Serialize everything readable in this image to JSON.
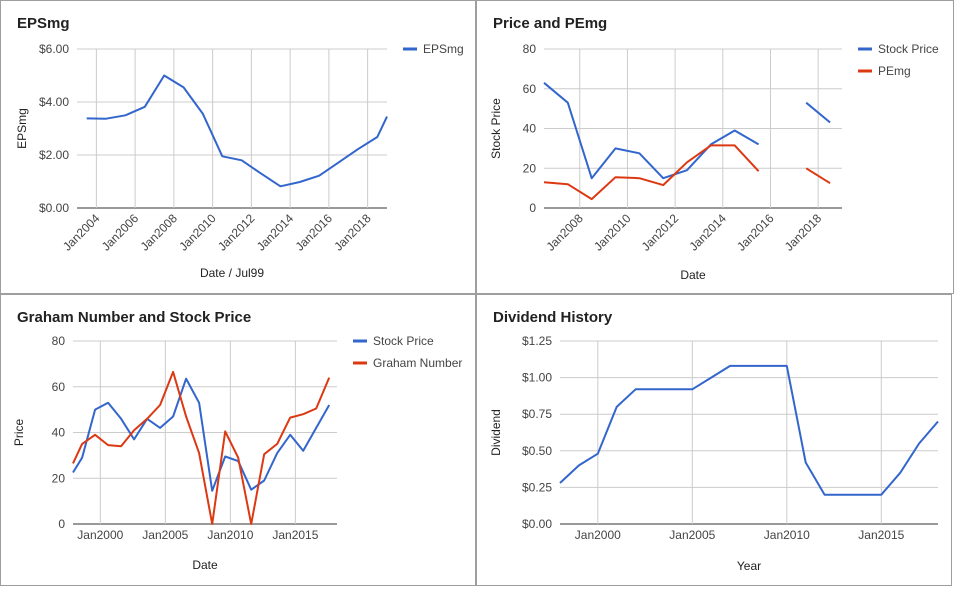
{
  "chart_data": [
    {
      "id": "eps",
      "type": "line",
      "title": "EPSmg",
      "xlabel": "Date / Jul99",
      "ylabel": "EPSmg",
      "ylim": [
        0,
        6
      ],
      "xlim": [
        2003.0,
        2019.0
      ],
      "yticks": [
        0,
        2,
        4,
        6
      ],
      "ytick_labels": [
        "$0.00",
        "$2.00",
        "$4.00",
        "$6.00"
      ],
      "xticks": [
        2004,
        2006,
        2008,
        2010,
        2012,
        2014,
        2016,
        2018
      ],
      "xtick_labels": [
        "Jan2004",
        "Jan2006",
        "Jan2008",
        "Jan2010",
        "Jan2012",
        "Jan2014",
        "Jan2016",
        "Jan2018"
      ],
      "legend": "right",
      "x": [
        2003.5,
        2004.5,
        2005.5,
        2006.5,
        2007.5,
        2008.5,
        2009.5,
        2010.5,
        2011.5,
        2012.5,
        2013.5,
        2014.5,
        2015.5,
        2016.5,
        2017.5,
        2018.5,
        2019.0
      ],
      "series": [
        {
          "name": "EPSmg",
          "color": "#3366cc",
          "values": [
            3.38,
            3.37,
            3.5,
            3.82,
            5.0,
            4.55,
            3.55,
            1.95,
            1.8,
            1.3,
            0.82,
            0.98,
            1.22,
            1.72,
            2.22,
            2.68,
            3.45
          ]
        }
      ]
    },
    {
      "id": "price",
      "type": "line",
      "title": "Price and PEmg",
      "xlabel": "Date",
      "ylabel": "Stock Price",
      "ylim": [
        0,
        80
      ],
      "xlim": [
        2006.5,
        2019.0
      ],
      "yticks": [
        0,
        20,
        40,
        60,
        80
      ],
      "ytick_labels": [
        "0",
        "20",
        "40",
        "60",
        "80"
      ],
      "xticks": [
        2008,
        2010,
        2012,
        2014,
        2016,
        2018
      ],
      "xtick_labels": [
        "Jan2008",
        "Jan2010",
        "Jan2012",
        "Jan2014",
        "Jan2016",
        "Jan2018"
      ],
      "legend": "right",
      "x": [
        2006.5,
        2007.5,
        2008.5,
        2009.5,
        2010.5,
        2011.5,
        2012.5,
        2013.5,
        2014.5,
        2015.5,
        2016.5,
        2017.5,
        2018.5,
        2019.0
      ],
      "series": [
        {
          "name": "Stock Price",
          "color": "#3366cc",
          "values": [
            63,
            53,
            15,
            30,
            27.5,
            15,
            19,
            32,
            39,
            32,
            null,
            53,
            43,
            null
          ]
        },
        {
          "name": "PEmg",
          "color": "#dc3912",
          "values": [
            13,
            12,
            4.5,
            15.5,
            15,
            11.5,
            23,
            31.5,
            31.5,
            18.5,
            null,
            20,
            12.5,
            null
          ]
        }
      ]
    },
    {
      "id": "graham",
      "type": "line",
      "title": "Graham Number and Stock Price",
      "xlabel": "Date",
      "ylabel": "Price",
      "ylim": [
        0,
        80
      ],
      "xlim": [
        1997.9,
        2018.2
      ],
      "yticks": [
        0,
        20,
        40,
        60,
        80
      ],
      "ytick_labels": [
        "0",
        "20",
        "40",
        "60",
        "80"
      ],
      "xticks": [
        2000,
        2005,
        2010,
        2015
      ],
      "xtick_labels": [
        "Jan2000",
        "Jan2005",
        "Jan2010",
        "Jan2015"
      ],
      "legend": "right",
      "x": [
        1997.9,
        1998.6,
        1999.6,
        2000.6,
        2001.6,
        2002.6,
        2003.6,
        2004.6,
        2005.6,
        2006.6,
        2007.6,
        2008.6,
        2009.6,
        2010.6,
        2011.6,
        2012.6,
        2013.6,
        2014.6,
        2015.6,
        2016.6,
        2017.6,
        2018.2
      ],
      "series": [
        {
          "name": "Stock Price",
          "color": "#3366cc",
          "values": [
            22.5,
            29,
            50,
            53,
            46,
            37,
            46,
            42,
            47,
            63.5,
            53,
            14.5,
            29.5,
            27.5,
            15,
            19,
            31,
            39,
            32,
            42,
            52,
            null
          ]
        },
        {
          "name": "Graham Number",
          "color": "#dc3912",
          "values": [
            26.5,
            35,
            39,
            34.5,
            34,
            41,
            46,
            52,
            66.5,
            47,
            31,
            0,
            40.5,
            29,
            0,
            30.5,
            35,
            46.5,
            48,
            50.5,
            64,
            null
          ]
        }
      ]
    },
    {
      "id": "dividend",
      "type": "line",
      "title": "Dividend History",
      "xlabel": "Year",
      "ylabel": "Dividend",
      "ylim": [
        0,
        1.25
      ],
      "xlim": [
        1998.0,
        2018.0
      ],
      "yticks": [
        0,
        0.25,
        0.5,
        0.75,
        1.0,
        1.25
      ],
      "ytick_labels": [
        "$0.00",
        "$0.25",
        "$0.50",
        "$0.75",
        "$1.00",
        "$1.25"
      ],
      "xticks": [
        2000,
        2005,
        2010,
        2015
      ],
      "xtick_labels": [
        "Jan2000",
        "Jan2005",
        "Jan2010",
        "Jan2015"
      ],
      "legend": "none",
      "x": [
        1998.0,
        1999.0,
        2000.0,
        2001.0,
        2002.0,
        2003.0,
        2004.0,
        2005.0,
        2006.0,
        2007.0,
        2008.0,
        2009.0,
        2010.0,
        2011.0,
        2012.0,
        2013.0,
        2014.0,
        2015.0,
        2016.0,
        2017.0,
        2018.0
      ],
      "series": [
        {
          "name": "Dividend",
          "color": "#3366cc",
          "values": [
            0.28,
            0.4,
            0.48,
            0.8,
            0.92,
            0.92,
            0.92,
            0.92,
            1.0,
            1.08,
            1.08,
            1.08,
            1.08,
            0.42,
            0.2,
            0.2,
            0.2,
            0.2,
            0.35,
            0.55,
            0.7
          ]
        }
      ]
    }
  ]
}
